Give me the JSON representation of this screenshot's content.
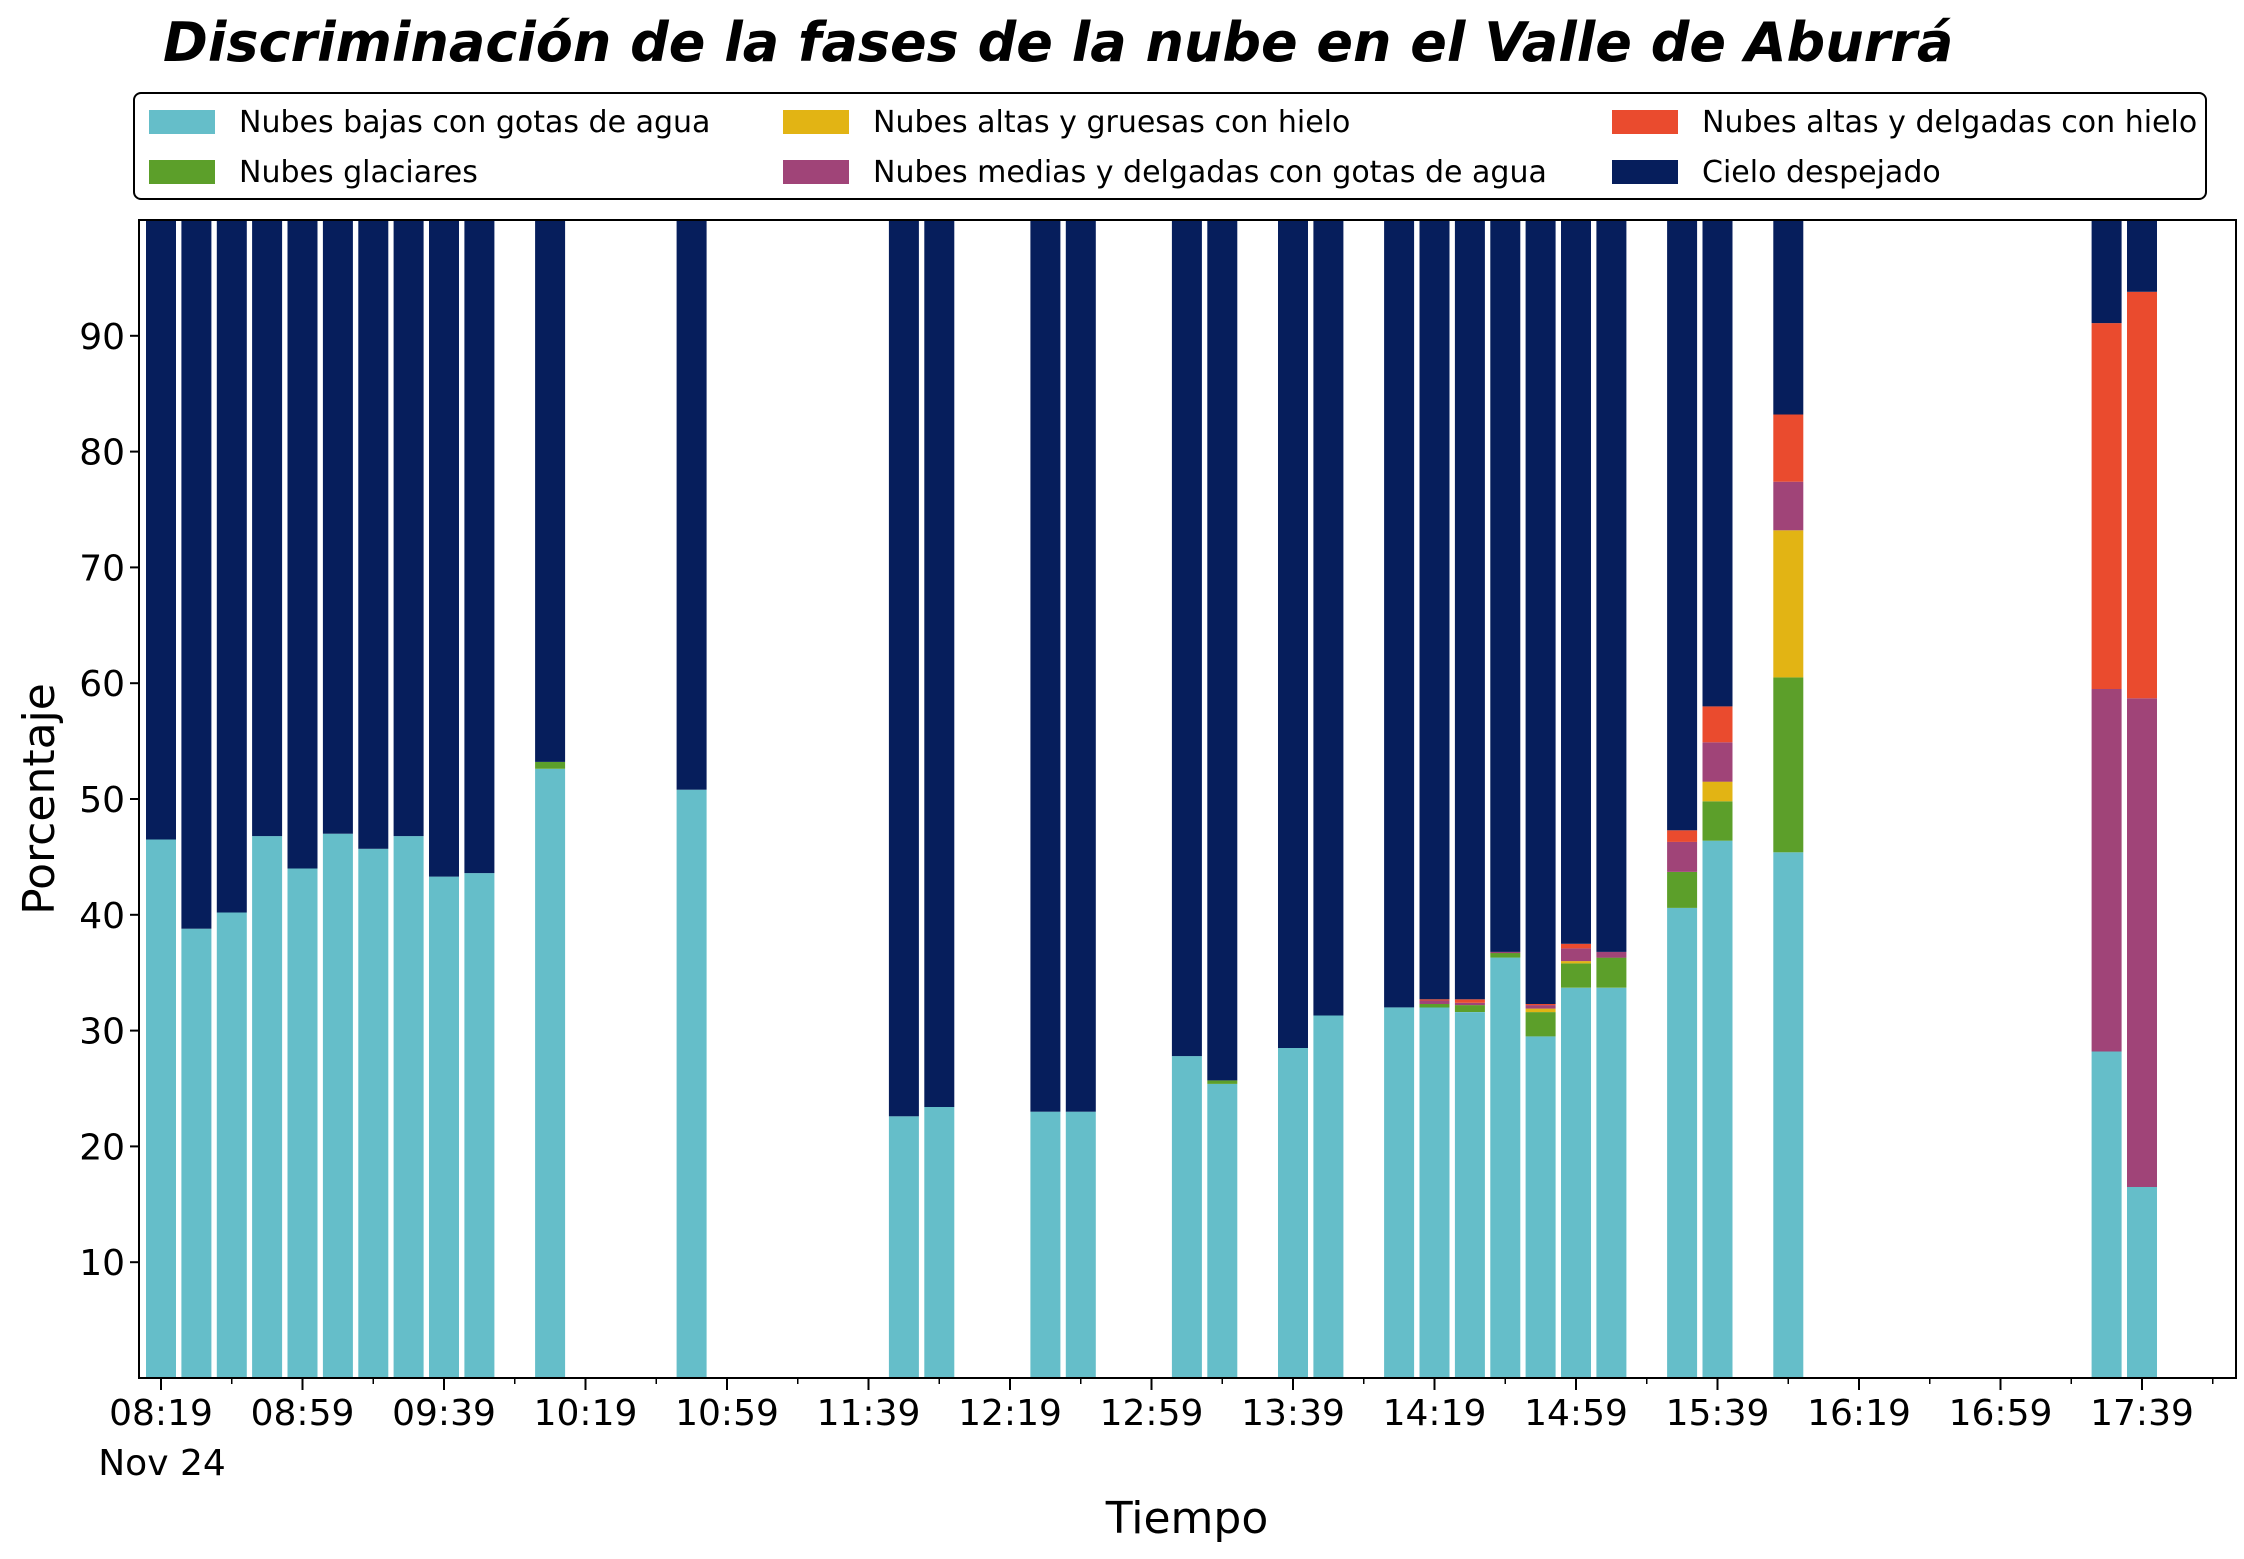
{
  "chart_data": {
    "type": "bar",
    "stacked": true,
    "title": "Discriminación de la fases de la nube en el Valle de Aburrá",
    "xlabel": "Tiempo",
    "ylabel": "Porcentaje",
    "ylim": [
      0,
      100
    ],
    "y_ticks": [
      10,
      20,
      30,
      40,
      50,
      60,
      70,
      80,
      90
    ],
    "x_tick_labels": [
      "08:19",
      "08:59",
      "09:39",
      "10:19",
      "10:59",
      "11:39",
      "12:19",
      "12:59",
      "13:39",
      "14:19",
      "14:59",
      "15:39",
      "16:19",
      "16:59",
      "17:39"
    ],
    "x_date_label": "Nov 24",
    "grid": false,
    "legend_position": "top",
    "categories": [
      "08:19",
      "08:29",
      "08:39",
      "08:49",
      "08:59",
      "09:09",
      "09:19",
      "09:29",
      "09:39",
      "09:49",
      "10:09",
      "10:49",
      "11:49",
      "11:59",
      "12:29",
      "12:39",
      "13:09",
      "13:19",
      "13:39",
      "13:49",
      "14:09",
      "14:19",
      "14:29",
      "14:39",
      "14:49",
      "14:59",
      "15:09",
      "15:29",
      "15:39",
      "15:59",
      "17:29",
      "17:39"
    ],
    "series": [
      {
        "name": "Nubes bajas con gotas de agua",
        "color": "#65bec9",
        "values": [
          46.5,
          38.8,
          40.2,
          46.8,
          44.0,
          47.0,
          45.7,
          46.8,
          43.3,
          43.6,
          52.6,
          50.8,
          22.6,
          23.4,
          23.0,
          23.0,
          27.8,
          25.4,
          28.5,
          31.3,
          32.0,
          32.0,
          31.6,
          36.3,
          29.5,
          33.7,
          33.7,
          40.6,
          46.4,
          45.4,
          28.2,
          16.5
        ]
      },
      {
        "name": "Nubes glaciares",
        "color": "#5c9f2a",
        "values": [
          0,
          0,
          0,
          0,
          0,
          0,
          0,
          0,
          0,
          0,
          0.6,
          0,
          0,
          0,
          0,
          0,
          0,
          0.3,
          0,
          0,
          0,
          0.3,
          0.6,
          0.4,
          2.1,
          2.1,
          2.6,
          3.1,
          3.4,
          15.1,
          0,
          0
        ]
      },
      {
        "name": "Nubes altas y gruesas con hielo",
        "color": "#e2b414",
        "values": [
          0,
          0,
          0,
          0,
          0,
          0,
          0,
          0,
          0,
          0,
          0,
          0,
          0,
          0,
          0,
          0,
          0,
          0,
          0,
          0,
          0,
          0,
          0,
          0,
          0.3,
          0.2,
          0,
          0,
          1.7,
          12.7,
          0,
          0
        ]
      },
      {
        "name": "Nubes medias y delgadas con gotas de agua",
        "color": "#a04478",
        "values": [
          0,
          0,
          0,
          0,
          0,
          0,
          0,
          0,
          0,
          0,
          0,
          0,
          0,
          0,
          0,
          0,
          0,
          0,
          0,
          0,
          0,
          0.3,
          0.2,
          0.1,
          0.3,
          1.1,
          0.5,
          2.6,
          3.4,
          4.2,
          31.3,
          42.2
        ]
      },
      {
        "name": "Nubes altas y delgadas con hielo",
        "color": "#ea4b2e",
        "values": [
          0,
          0,
          0,
          0,
          0,
          0,
          0,
          0,
          0,
          0,
          0,
          0,
          0,
          0,
          0,
          0,
          0,
          0,
          0,
          0,
          0,
          0.1,
          0.3,
          0,
          0.1,
          0.4,
          0,
          1.0,
          3.1,
          5.8,
          31.6,
          35.1
        ]
      },
      {
        "name": "Cielo despejado",
        "color": "#061e5c",
        "values": [
          53.5,
          61.2,
          59.8,
          53.2,
          56.0,
          53.0,
          54.3,
          53.2,
          56.7,
          56.4,
          46.8,
          49.2,
          77.4,
          76.6,
          77.0,
          77.0,
          72.2,
          74.3,
          71.5,
          68.7,
          68.0,
          67.3,
          67.3,
          63.2,
          67.7,
          62.5,
          63.2,
          52.7,
          42.0,
          16.8,
          8.9,
          6.2
        ]
      }
    ]
  }
}
